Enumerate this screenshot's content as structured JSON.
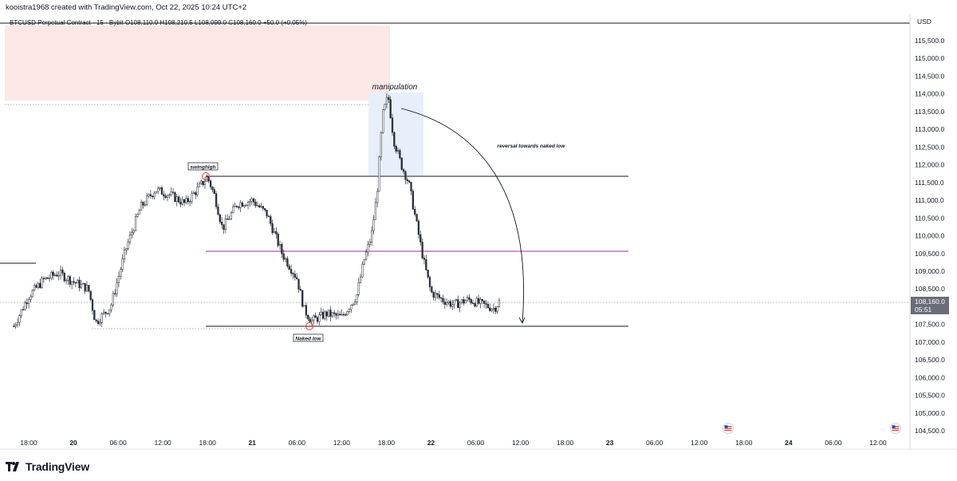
{
  "header": {
    "created_by": "kooistra1968 created with TradingView.com, Oct 22, 2025 10:24 UTC+2"
  },
  "legend": {
    "text": "BTCUSD Perpetual Contract · 15 · Bybit  O108,110.0  H108,210.5  L108,099.0  C108,160.0  +50.0 (+0.05%)"
  },
  "axis": {
    "currency": "USD",
    "price_ticks": [
      "115,500.0",
      "115,000.0",
      "114,500.0",
      "114,000.0",
      "113,500.0",
      "113,000.0",
      "112,500.0",
      "112,000.0",
      "111,500.0",
      "111,000.0",
      "110,500.0",
      "110,000.0",
      "109,500.0",
      "109,000.0",
      "108,500.0",
      "108,000.0",
      "107,500.0",
      "107,000.0",
      "106,500.0",
      "106,000.0",
      "105,500.0",
      "105,000.0",
      "104,500.0"
    ],
    "time_ticks": [
      "18:00",
      "20",
      "06:00",
      "12:00",
      "18:00",
      "21",
      "06:00",
      "12:00",
      "18:00",
      "22",
      "06:00",
      "12:00",
      "18:00",
      "23",
      "06:00",
      "12:00",
      "18:00",
      "24",
      "06:00",
      "12:00"
    ],
    "last_price": "108,160.0",
    "countdown": "05:51"
  },
  "annotations": {
    "manipulation": "manipulation",
    "swing_high": "swinghigh",
    "naked_low": "Naked low",
    "reversal": "reversal towards naked low"
  },
  "brand": {
    "logo_text": "TradingView"
  },
  "colors": {
    "candle": "#2a2e39",
    "supply_zone": "#fde7e7",
    "manipulation_box": "#e8effa",
    "mid_line": "#9c27b0",
    "level_line": "#131722",
    "marker": "#e53935"
  },
  "chart_data": {
    "type": "candlestick",
    "symbol": "BTCUSD Perpetual Contract",
    "interval": "15",
    "exchange": "Bybit",
    "ohlc": {
      "open": 108110.0,
      "high": 108210.5,
      "low": 108099.0,
      "close": 108160.0,
      "change": 50.0,
      "change_pct": 0.05
    },
    "ylim": [
      104400,
      116000
    ],
    "x": [
      "19 18:00",
      "20",
      "20 06:00",
      "20 12:00",
      "20 18:00",
      "21",
      "21 06:00",
      "21 12:00",
      "21 18:00",
      "22",
      "22 06:00",
      "22 12:00",
      "22 18:00",
      "23",
      "23 06:00",
      "23 12:00",
      "23 18:00",
      "24",
      "24 06:00",
      "24 12:00"
    ],
    "price_path": [
      [
        "19 16:00",
        107450
      ],
      [
        "19 18:00",
        108300
      ],
      [
        "19 20:00",
        108750
      ],
      [
        "19 22:00",
        108950
      ],
      [
        "20 00:00",
        108700
      ],
      [
        "20 02:00",
        108500
      ],
      [
        "20 03:00",
        107550
      ],
      [
        "20 05:00",
        108000
      ],
      [
        "20 07:00",
        109600
      ],
      [
        "20 09:00",
        110800
      ],
      [
        "20 11:00",
        111300
      ],
      [
        "20 13:00",
        111150
      ],
      [
        "20 15:00",
        110900
      ],
      [
        "20 17:00",
        111400
      ],
      [
        "20 18:00",
        111650
      ],
      [
        "20 19:00",
        111100
      ],
      [
        "20 20:00",
        110200
      ],
      [
        "20 22:00",
        110900
      ],
      [
        "21 00:00",
        111000
      ],
      [
        "21 02:00",
        110600
      ],
      [
        "21 04:00",
        109500
      ],
      [
        "21 06:00",
        108800
      ],
      [
        "21 07:00",
        107900
      ],
      [
        "21 08:00",
        107600
      ],
      [
        "21 10:00",
        107800
      ],
      [
        "21 12:00",
        107700
      ],
      [
        "21 14:00",
        108300
      ],
      [
        "21 15:00",
        109300
      ],
      [
        "21 16:00",
        110000
      ],
      [
        "21 16:45",
        111200
      ],
      [
        "21 17:30",
        113400
      ],
      [
        "21 18:15",
        113950
      ],
      [
        "21 19:00",
        112700
      ],
      [
        "21 20:00",
        112000
      ],
      [
        "21 21:00",
        111500
      ],
      [
        "21 22:00",
        110400
      ],
      [
        "21 23:00",
        109300
      ],
      [
        "22 00:00",
        108400
      ],
      [
        "22 01:30",
        108200
      ],
      [
        "22 03:00",
        108050
      ],
      [
        "22 05:00",
        108200
      ],
      [
        "22 07:00",
        108050
      ],
      [
        "22 08:30",
        107950
      ],
      [
        "22 09:15",
        108160
      ]
    ],
    "levels": [
      {
        "name": "swinghigh",
        "price": 111680
      },
      {
        "name": "mid",
        "price": 109560
      },
      {
        "name": "Naked low",
        "price": 107420
      },
      {
        "name": "left-reference",
        "price": 109150
      },
      {
        "name": "last-price",
        "price": 108160
      }
    ],
    "zones": [
      {
        "name": "supply",
        "from": 113800,
        "to": 116000
      },
      {
        "name": "manipulation",
        "from": 111900,
        "to": 114000
      }
    ],
    "annotations": [
      "manipulation",
      "swinghigh",
      "Naked low",
      "reversal towards naked low"
    ],
    "grid": false
  }
}
